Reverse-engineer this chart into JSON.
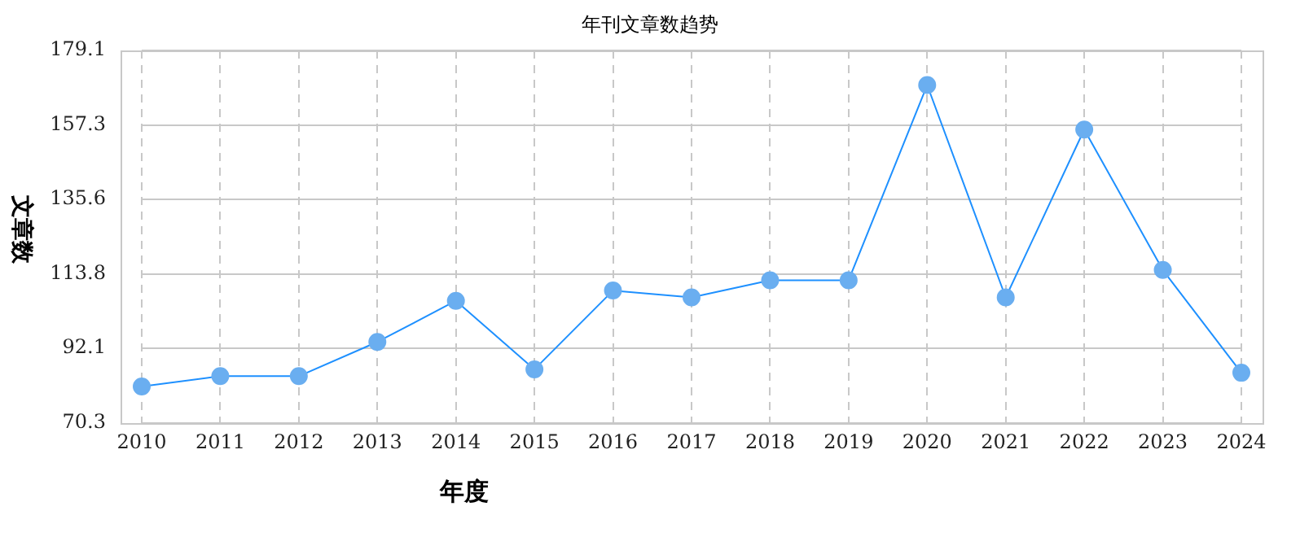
{
  "chart_data": {
    "type": "line",
    "title": "年刊文章数趋势",
    "xlabel": "年度",
    "ylabel": "文章数",
    "categories": [
      "2010",
      "2011",
      "2012",
      "2013",
      "2014",
      "2015",
      "2016",
      "2017",
      "2018",
      "2019",
      "2020",
      "2021",
      "2022",
      "2023",
      "2024"
    ],
    "series": [
      {
        "color": "#1e90ff",
        "values": [
          81,
          84,
          84,
          94,
          106,
          86,
          109,
          107,
          112,
          112,
          169,
          107,
          156,
          115,
          85
        ]
      }
    ],
    "ylim": [
      70.3,
      179.1
    ],
    "yticks": [
      70.3,
      92.1,
      113.8,
      135.6,
      157.3,
      179.1
    ],
    "grid": true,
    "legend": false,
    "marker": "circle",
    "line_style": "solid"
  }
}
